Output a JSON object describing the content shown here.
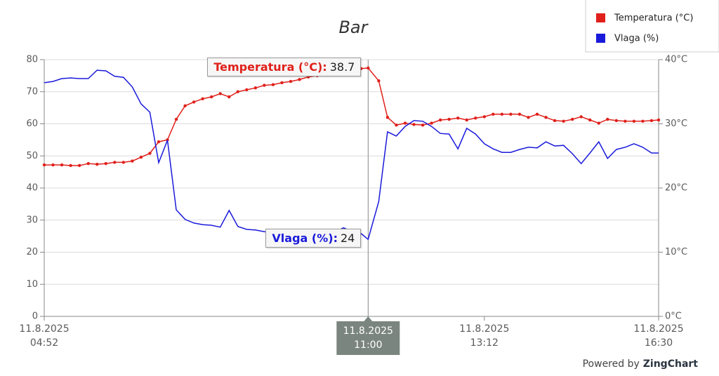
{
  "chart_data": {
    "type": "line",
    "title": "Bar",
    "x": [
      "04:52",
      "05:02",
      "05:12",
      "05:22",
      "05:32",
      "05:42",
      "05:52",
      "06:02",
      "06:12",
      "06:22",
      "06:32",
      "06:42",
      "06:52",
      "07:02",
      "07:12",
      "07:22",
      "07:32",
      "07:42",
      "07:52",
      "08:02",
      "08:12",
      "08:22",
      "08:32",
      "08:42",
      "08:52",
      "09:02",
      "09:12",
      "09:22",
      "09:32",
      "09:42",
      "09:52",
      "10:02",
      "10:12",
      "10:22",
      "10:32",
      "10:42",
      "10:52",
      "11:00",
      "11:12",
      "11:22",
      "11:32",
      "11:42",
      "11:52",
      "12:02",
      "12:12",
      "12:22",
      "12:32",
      "12:42",
      "12:52",
      "13:02",
      "13:12",
      "13:22",
      "13:32",
      "13:42",
      "13:52",
      "14:02",
      "14:12",
      "14:22",
      "14:32",
      "14:42",
      "14:52",
      "15:02",
      "15:12",
      "15:22",
      "15:32",
      "15:42",
      "15:52",
      "16:02",
      "16:12",
      "16:22",
      "16:30"
    ],
    "series": [
      {
        "name": "Temperatura (°C)",
        "color": "#e0201b",
        "axis": "y2",
        "markers": true,
        "values": [
          23.6,
          23.6,
          23.6,
          23.5,
          23.5,
          23.8,
          23.7,
          23.8,
          24.0,
          24.0,
          24.2,
          24.8,
          25.4,
          27.2,
          27.5,
          30.7,
          32.8,
          33.4,
          33.9,
          34.2,
          34.7,
          34.2,
          35.0,
          35.3,
          35.6,
          36.0,
          36.1,
          36.4,
          36.6,
          36.9,
          37.3,
          37.5,
          37.7,
          37.9,
          38.1,
          38.4,
          38.6,
          38.7,
          36.7,
          31.0,
          29.8,
          30.1,
          29.9,
          29.8,
          30.1,
          30.6,
          30.7,
          30.9,
          30.6,
          30.9,
          31.1,
          31.5,
          31.5,
          31.5,
          31.5,
          31.0,
          31.5,
          31.0,
          30.5,
          30.4,
          30.7,
          31.1,
          30.6,
          30.1,
          30.7,
          30.5,
          30.4,
          30.4,
          30.4,
          30.5,
          30.6
        ]
      },
      {
        "name": "Vlaga (%)",
        "color": "#1a1adb",
        "markers": false,
        "values": [
          72.8,
          73.2,
          74.1,
          74.3,
          74.1,
          74.1,
          76.7,
          76.5,
          74.8,
          74.5,
          71.5,
          66.2,
          63.6,
          47.9,
          54.9,
          33.2,
          30.2,
          29.1,
          28.6,
          28.4,
          27.8,
          33.0,
          28.0,
          27.1,
          26.9,
          26.4,
          26.0,
          25.8,
          25.8,
          26.0,
          25.8,
          25.8,
          26.0,
          26.2,
          27.6,
          26.4,
          25.8,
          24,
          35.8,
          57.5,
          56.2,
          59.2,
          61.0,
          60.8,
          59.2,
          57.0,
          56.8,
          52.2,
          58.6,
          56.8,
          53.8,
          52.2,
          51.1,
          51.1,
          52.0,
          52.7,
          52.5,
          54.4,
          53.1,
          53.3,
          50.7,
          47.6,
          50.9,
          54.4,
          49.2,
          52.0,
          52.7,
          53.8,
          52.7,
          50.9,
          50.9
        ]
      }
    ],
    "xlim": [
      "04:52",
      "16:30"
    ],
    "xticks": [
      {
        "value": "04:52",
        "label": [
          "11.8.2025",
          "04:52"
        ]
      },
      {
        "value": "13:12",
        "label": [
          "11.8.2025",
          "13:12"
        ]
      },
      {
        "value": "16:30",
        "label": [
          "11.8.2025",
          "16:30"
        ]
      }
    ],
    "crosshair": {
      "x": "11:00",
      "label": [
        "11.8.2025",
        "11:00"
      ]
    },
    "ylim": [
      0,
      80
    ],
    "yticks": [
      0,
      10,
      20,
      30,
      40,
      50,
      60,
      70,
      80
    ],
    "y2lim": [
      0,
      40
    ],
    "y2ticks": [
      {
        "value": 0,
        "label": "0°C"
      },
      {
        "value": 10,
        "label": "10°C"
      },
      {
        "value": 20,
        "label": "20°C"
      },
      {
        "value": 30,
        "label": "30°C"
      },
      {
        "value": 40,
        "label": "40°C"
      }
    ],
    "grid": true,
    "legend": "top-right",
    "credit": [
      "Powered by",
      "ZingChart"
    ]
  }
}
